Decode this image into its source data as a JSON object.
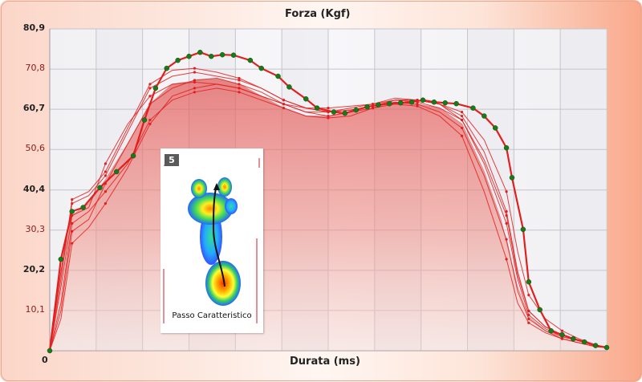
{
  "chart_data": {
    "type": "line",
    "title": "Forza (Kgf)",
    "xlabel": "Durata (ms)",
    "ylabel": "",
    "x_tick_label": "0",
    "x_categories": 12,
    "ylim": [
      0,
      80.9
    ],
    "y_ticks": [
      "80,9",
      "70,8",
      "60,7",
      "50,6",
      "40,4",
      "30,3",
      "20,2",
      "10,1"
    ],
    "y_tick_values": [
      80.9,
      70.8,
      60.7,
      50.6,
      40.4,
      30.3,
      20.2,
      10.1
    ],
    "y_tick_colors": [
      "#222222",
      "#8b1a1a",
      "#222222",
      "#8b1a1a",
      "#222222",
      "#8b1a1a",
      "#222222",
      "#8b1a1a"
    ],
    "grid": true,
    "colors": {
      "curve": "#e21f1f",
      "marker": "#1a7a1a",
      "area": "#e88080"
    },
    "series": [
      {
        "role": "average-area",
        "x": [
          0.0,
          0.01,
          0.04,
          0.07,
          0.1,
          0.14,
          0.18,
          0.22,
          0.27,
          0.3,
          0.34,
          0.38,
          0.42,
          0.46,
          0.5,
          0.54,
          0.58,
          0.62,
          0.66,
          0.7,
          0.74,
          0.78,
          0.81,
          0.84,
          0.86,
          0.89,
          0.92,
          0.95,
          0.98,
          1.0
        ],
        "y": [
          0,
          12,
          34,
          37,
          43,
          52,
          62,
          67,
          68,
          68.3,
          67,
          64,
          61,
          59,
          59,
          60,
          61,
          62.5,
          62,
          61,
          57,
          45,
          33,
          16,
          8.5,
          5,
          3.5,
          2.5,
          1.3,
          0.8
        ]
      },
      {
        "role": "characteristic-step",
        "markers": true,
        "x": [
          0.0,
          0.02,
          0.04,
          0.06,
          0.09,
          0.12,
          0.15,
          0.17,
          0.19,
          0.21,
          0.23,
          0.25,
          0.27,
          0.29,
          0.31,
          0.33,
          0.36,
          0.38,
          0.41,
          0.43,
          0.46,
          0.48,
          0.51,
          0.53,
          0.55,
          0.57,
          0.59,
          0.61,
          0.63,
          0.65,
          0.67,
          0.69,
          0.71,
          0.73,
          0.76,
          0.78,
          0.8,
          0.82,
          0.83,
          0.85,
          0.86,
          0.88,
          0.9,
          0.92,
          0.94,
          0.96,
          0.98,
          1.0
        ],
        "y": [
          0,
          23,
          35,
          36,
          41,
          45,
          49,
          58,
          66,
          71,
          73,
          74,
          75,
          74,
          74.4,
          74.3,
          73,
          71,
          69,
          66.3,
          63.3,
          61,
          60,
          59.7,
          60.5,
          61.3,
          61.8,
          62.1,
          62.3,
          62.5,
          63,
          62.5,
          62.3,
          62.1,
          61,
          59,
          56,
          51,
          43.5,
          30.5,
          17.3,
          10.3,
          5,
          4,
          3,
          2.2,
          1.3,
          0.8
        ]
      },
      {
        "role": "step",
        "x": [
          0,
          0.02,
          0.04,
          0.07,
          0.1,
          0.14,
          0.18,
          0.22,
          0.26,
          0.3,
          0.34,
          0.38,
          0.42,
          0.46,
          0.5,
          0.54,
          0.58,
          0.62,
          0.66,
          0.7,
          0.74,
          0.78,
          0.82,
          0.84,
          0.86,
          0.89,
          0.92,
          0.95,
          0.98,
          1.0
        ],
        "y": [
          0,
          20,
          37,
          39,
          44,
          55,
          66,
          69,
          70,
          69,
          68,
          66,
          63,
          61,
          60,
          60.5,
          61.5,
          62.5,
          62,
          60,
          56,
          44,
          28,
          15,
          8,
          5,
          3,
          2,
          1,
          0.8
        ]
      },
      {
        "role": "step",
        "x": [
          0,
          0.02,
          0.04,
          0.07,
          0.1,
          0.14,
          0.18,
          0.22,
          0.26,
          0.3,
          0.34,
          0.38,
          0.42,
          0.46,
          0.5,
          0.54,
          0.58,
          0.62,
          0.66,
          0.7,
          0.74,
          0.78,
          0.82,
          0.84,
          0.86,
          0.89,
          0.92,
          0.95,
          0.98,
          1.0
        ],
        "y": [
          0,
          16,
          34,
          36,
          47,
          57,
          64,
          67,
          67.5,
          67,
          66,
          64,
          62,
          60,
          59,
          60,
          61,
          62,
          61.5,
          59,
          54,
          40,
          23,
          12,
          7,
          4.5,
          3,
          2,
          1,
          0.8
        ]
      },
      {
        "role": "step",
        "x": [
          0,
          0.02,
          0.04,
          0.07,
          0.1,
          0.14,
          0.18,
          0.22,
          0.26,
          0.3,
          0.34,
          0.38,
          0.42,
          0.46,
          0.5,
          0.54,
          0.58,
          0.62,
          0.66,
          0.7,
          0.74,
          0.78,
          0.82,
          0.84,
          0.86,
          0.89,
          0.92,
          0.95,
          0.98,
          1.0
        ],
        "y": [
          0,
          12,
          32,
          35,
          40,
          47,
          58,
          63,
          65,
          66,
          65,
          63,
          61,
          59,
          58.5,
          59,
          61,
          63,
          63,
          62,
          59,
          50,
          35,
          20,
          10,
          6,
          4,
          2.5,
          1.2,
          0.8
        ]
      },
      {
        "role": "step",
        "x": [
          0,
          0.02,
          0.04,
          0.07,
          0.1,
          0.14,
          0.18,
          0.22,
          0.26,
          0.3,
          0.34,
          0.38,
          0.42,
          0.46,
          0.5,
          0.54,
          0.58,
          0.62,
          0.66,
          0.7,
          0.74,
          0.78,
          0.82,
          0.84,
          0.86,
          0.89,
          0.92,
          0.95,
          0.98,
          1.0
        ],
        "y": [
          0,
          8,
          27,
          31,
          37,
          46,
          57,
          64,
          66,
          67,
          66,
          64,
          62,
          61,
          60,
          61,
          62,
          63,
          63,
          62,
          58,
          47,
          32,
          18,
          9,
          5.5,
          3.5,
          2.5,
          1.3,
          0.8
        ]
      },
      {
        "role": "step",
        "x": [
          0,
          0.02,
          0.04,
          0.07,
          0.1,
          0.14,
          0.18,
          0.22,
          0.26,
          0.3,
          0.34,
          0.38,
          0.42,
          0.46,
          0.5,
          0.54,
          0.58,
          0.62,
          0.66,
          0.7,
          0.74,
          0.78,
          0.82,
          0.84,
          0.86,
          0.89,
          0.92,
          0.95,
          0.98,
          1.0
        ],
        "y": [
          0,
          18,
          38,
          40,
          45,
          56,
          67,
          70.5,
          71,
          70,
          68.5,
          66,
          63,
          61,
          61,
          61.5,
          62,
          63.5,
          63,
          62,
          60,
          53,
          40,
          25,
          14,
          8,
          5,
          3,
          1.5,
          0.8
        ]
      },
      {
        "role": "step",
        "x": [
          0,
          0.02,
          0.04,
          0.07,
          0.1,
          0.14,
          0.18,
          0.22,
          0.26,
          0.3,
          0.34,
          0.38,
          0.42,
          0.46,
          0.5,
          0.54,
          0.58,
          0.62,
          0.66,
          0.7,
          0.74,
          0.78,
          0.82,
          0.84,
          0.86,
          0.89,
          0.92,
          0.95,
          0.98,
          1.0
        ],
        "y": [
          0,
          10,
          30,
          33,
          42,
          52,
          62,
          66,
          68,
          68.5,
          67,
          65,
          62,
          60,
          60,
          60.5,
          61.5,
          63,
          62.5,
          61,
          58,
          48,
          34,
          19,
          10,
          6,
          4,
          2.5,
          1.3,
          0.8
        ]
      }
    ]
  },
  "inset": {
    "badge": "5",
    "label": "Passo Caratteristico"
  }
}
